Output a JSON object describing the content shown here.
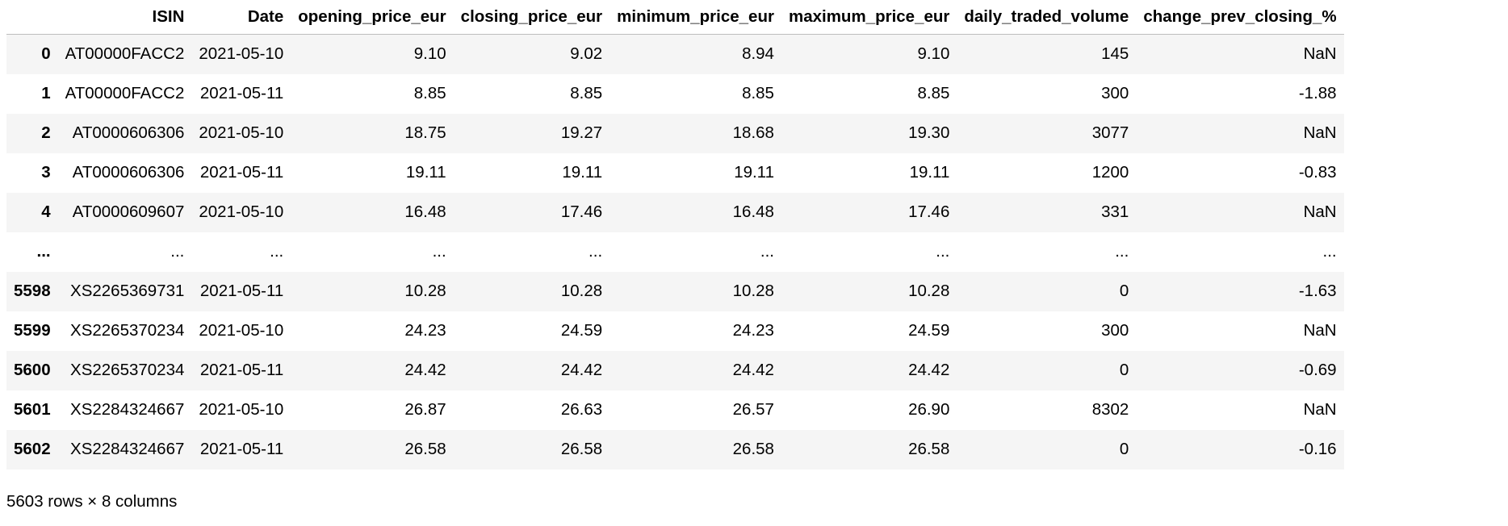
{
  "table": {
    "index_header": "",
    "columns": [
      "ISIN",
      "Date",
      "opening_price_eur",
      "closing_price_eur",
      "minimum_price_eur",
      "maximum_price_eur",
      "daily_traded_volume",
      "change_prev_closing_%"
    ],
    "rows": [
      {
        "index": "0",
        "cells": [
          "AT00000FACC2",
          "2021-05-10",
          "9.10",
          "9.02",
          "8.94",
          "9.10",
          "145",
          "NaN"
        ]
      },
      {
        "index": "1",
        "cells": [
          "AT00000FACC2",
          "2021-05-11",
          "8.85",
          "8.85",
          "8.85",
          "8.85",
          "300",
          "-1.88"
        ]
      },
      {
        "index": "2",
        "cells": [
          "AT0000606306",
          "2021-05-10",
          "18.75",
          "19.27",
          "18.68",
          "19.30",
          "3077",
          "NaN"
        ]
      },
      {
        "index": "3",
        "cells": [
          "AT0000606306",
          "2021-05-11",
          "19.11",
          "19.11",
          "19.11",
          "19.11",
          "1200",
          "-0.83"
        ]
      },
      {
        "index": "4",
        "cells": [
          "AT0000609607",
          "2021-05-10",
          "16.48",
          "17.46",
          "16.48",
          "17.46",
          "331",
          "NaN"
        ]
      },
      {
        "index": "...",
        "cells": [
          "...",
          "...",
          "...",
          "...",
          "...",
          "...",
          "...",
          "..."
        ]
      },
      {
        "index": "5598",
        "cells": [
          "XS2265369731",
          "2021-05-11",
          "10.28",
          "10.28",
          "10.28",
          "10.28",
          "0",
          "-1.63"
        ]
      },
      {
        "index": "5599",
        "cells": [
          "XS2265370234",
          "2021-05-10",
          "24.23",
          "24.59",
          "24.23",
          "24.59",
          "300",
          "NaN"
        ]
      },
      {
        "index": "5600",
        "cells": [
          "XS2265370234",
          "2021-05-11",
          "24.42",
          "24.42",
          "24.42",
          "24.42",
          "0",
          "-0.69"
        ]
      },
      {
        "index": "5601",
        "cells": [
          "XS2284324667",
          "2021-05-10",
          "26.87",
          "26.63",
          "26.57",
          "26.90",
          "8302",
          "NaN"
        ]
      },
      {
        "index": "5602",
        "cells": [
          "XS2284324667",
          "2021-05-11",
          "26.58",
          "26.58",
          "26.58",
          "26.58",
          "0",
          "-0.16"
        ]
      }
    ]
  },
  "footer": {
    "shape_text": "5603 rows × 8 columns"
  }
}
